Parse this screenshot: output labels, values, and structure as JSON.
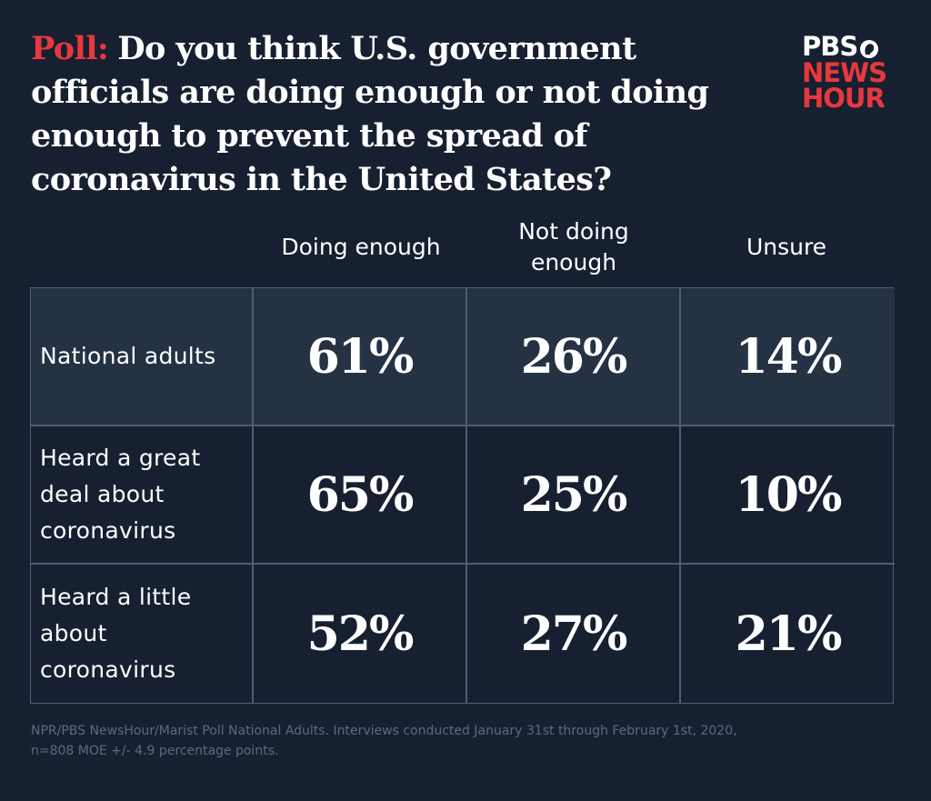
{
  "chart_data": {
    "type": "table",
    "title_prefix": "Poll:",
    "title": "Do you think U.S. government officials are doing enough or not doing enough to prevent the spread of coronavirus in the United States?",
    "columns": [
      "Doing enough",
      "Not doing enough",
      "Unsure"
    ],
    "rows": [
      {
        "label": "National adults",
        "values": [
          "61%",
          "26%",
          "14%"
        ]
      },
      {
        "label": "Heard a great deal about coronavirus",
        "values": [
          "65%",
          "25%",
          "10%"
        ]
      },
      {
        "label": "Heard a little about coronavirus",
        "values": [
          "52%",
          "27%",
          "21%"
        ]
      }
    ],
    "source": "NPR/PBS NewsHour/Marist Poll National Adults. Interviews conducted January 31st through February 1st, 2020, n=808 MOE +/- 4.9 percentage points."
  },
  "logo": {
    "line1": "PBS",
    "line2": "NEWS",
    "line3": "HOUR"
  },
  "colors": {
    "background": "#162030",
    "accent": "#e8383d",
    "shaded_row": "#253243",
    "grid_line": "#4f5e73",
    "source_text": "#5d6b7f"
  }
}
